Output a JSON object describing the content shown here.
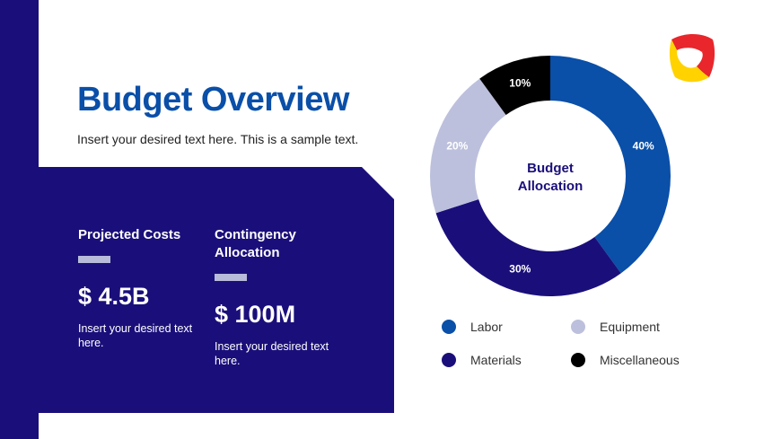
{
  "slide": {
    "title": "Budget Overview",
    "subtitle": "Insert your desired text here. This is a sample text."
  },
  "metrics": [
    {
      "label": "Projected Costs",
      "value": "$ 4.5B",
      "note": "Insert your desired text here."
    },
    {
      "label": "Contingency Allocation",
      "value": "$ 100M",
      "note": "Insert your desired text here."
    }
  ],
  "colors": {
    "navy": "#1a0f7a",
    "title_blue": "#0a4fa8",
    "accent_bar": "#b9bbda"
  },
  "chart_data": {
    "type": "pie",
    "title": "Budget Allocation",
    "categories": [
      "Labor",
      "Materials",
      "Equipment",
      "Miscellaneous"
    ],
    "values": [
      40,
      30,
      20,
      10
    ],
    "labels": [
      "40%",
      "30%",
      "20%",
      "10%"
    ],
    "colors": [
      "#0a4fa8",
      "#1a0f7a",
      "#bcc0dc",
      "#000000"
    ],
    "legend": "bottom"
  }
}
